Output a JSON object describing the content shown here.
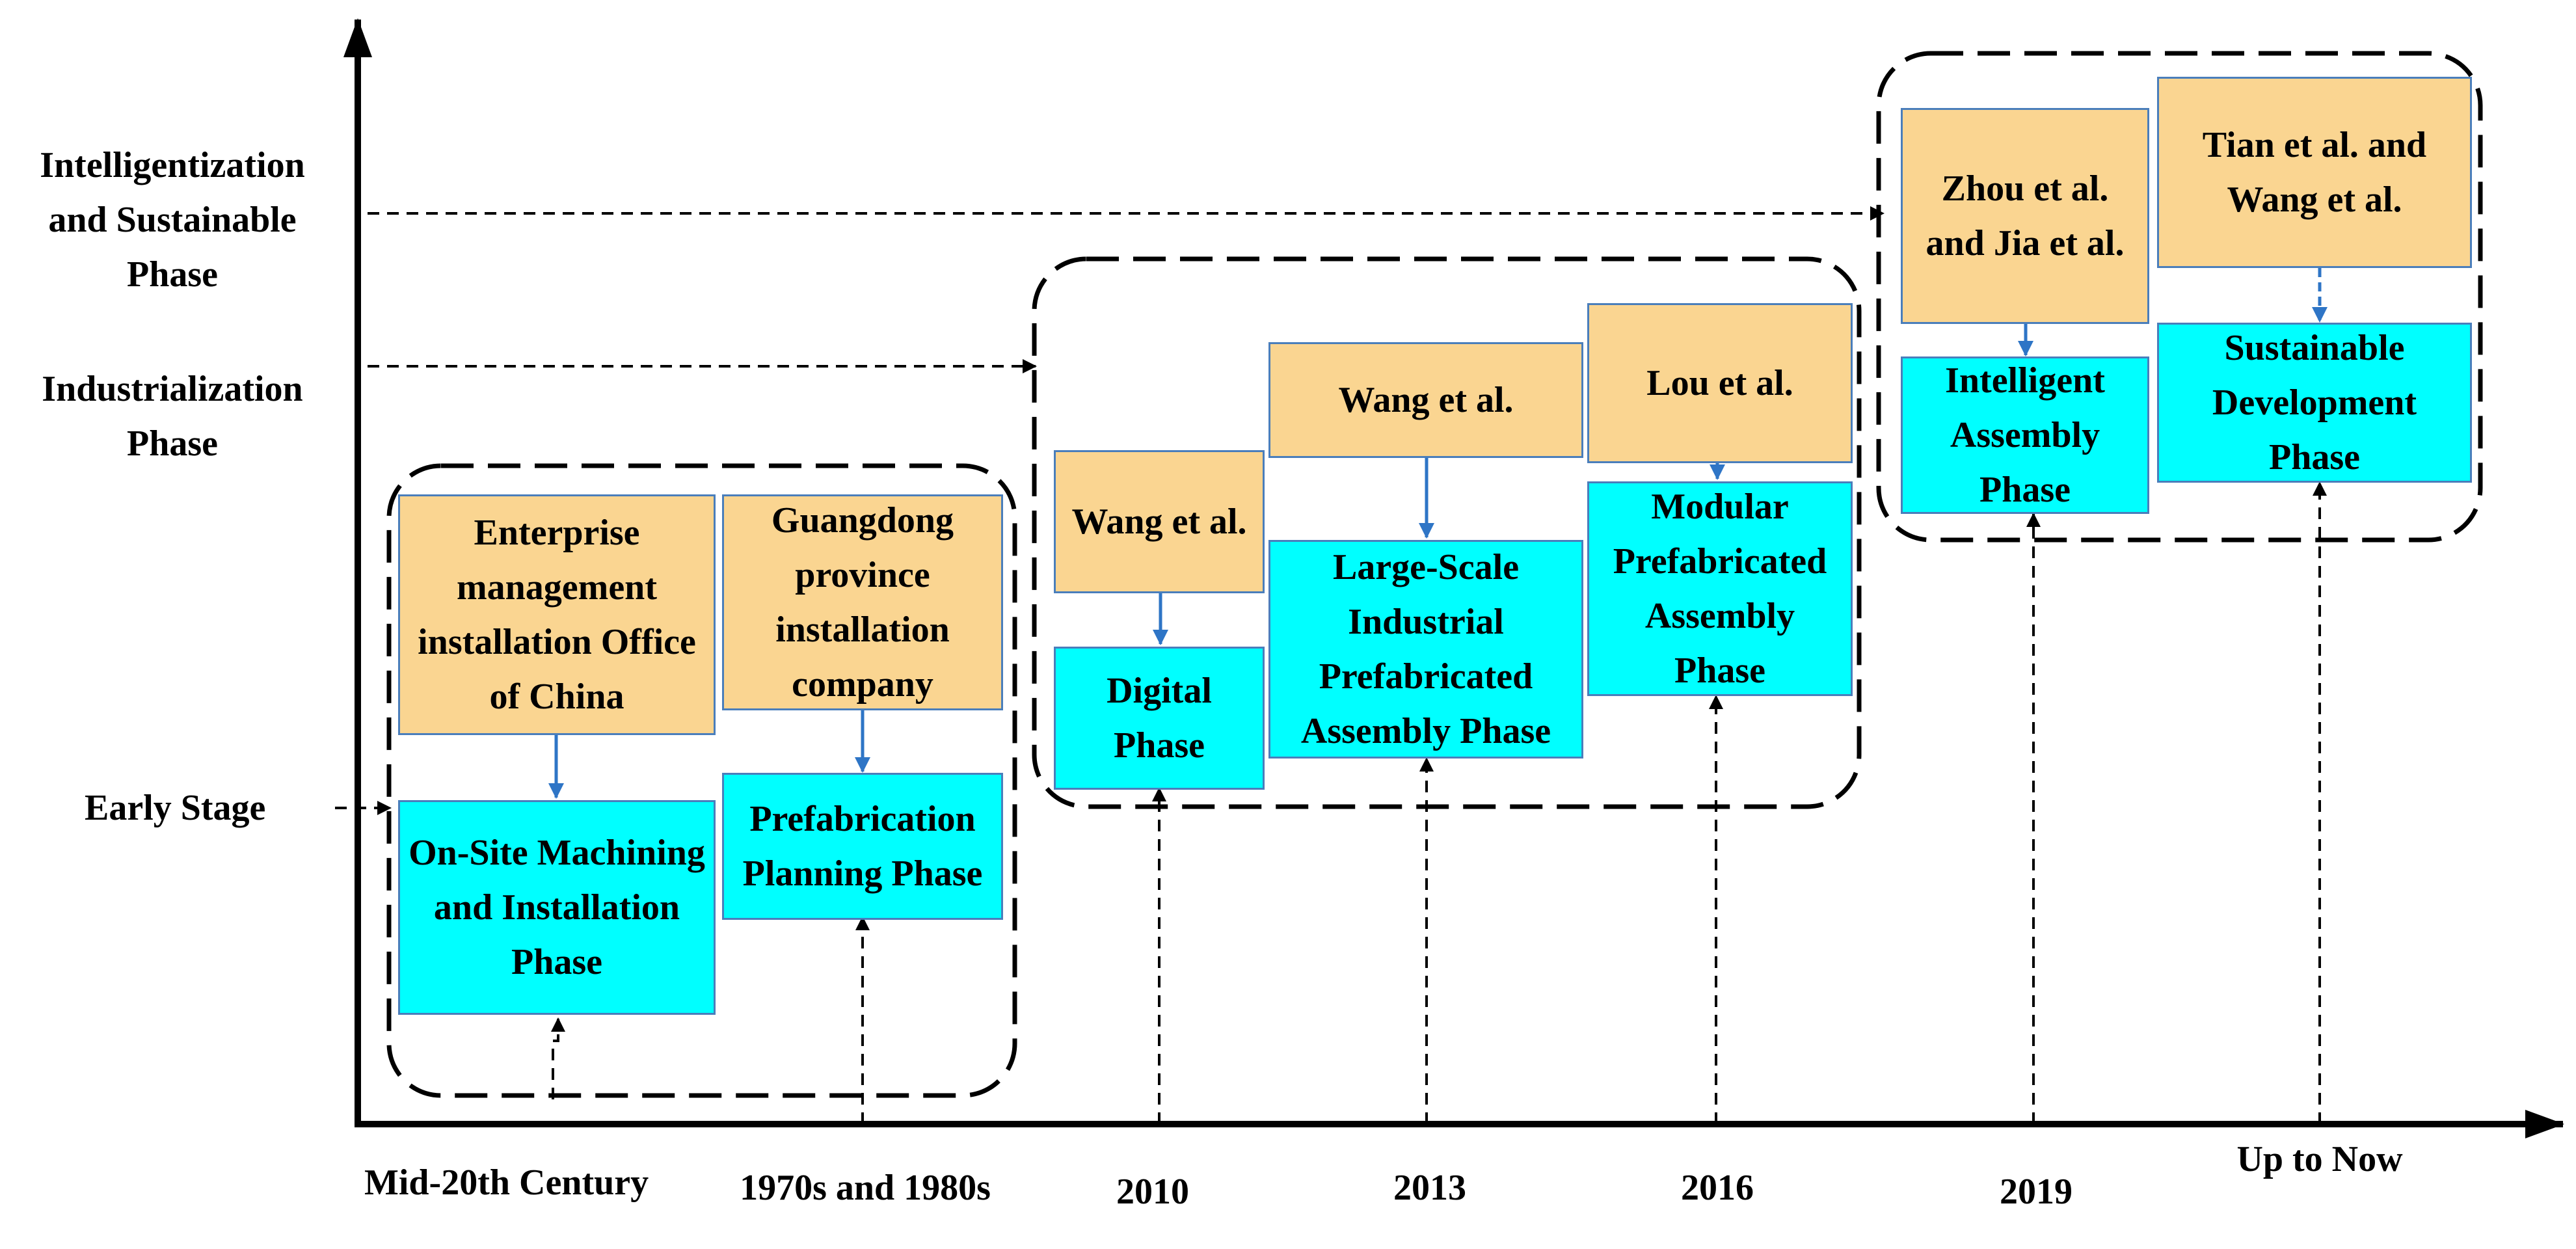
{
  "y_axis": {
    "labels": [
      "Intelligentization and Sustainable Phase",
      "Industrialization Phase",
      "Early Stage"
    ]
  },
  "x_axis": {
    "labels": [
      "Mid-20th Century",
      "1970s and 1980s",
      "2010",
      "2013",
      "2016",
      "2019",
      "Up to Now"
    ]
  },
  "groups": [
    {
      "stage": "Early Stage",
      "items": [
        {
          "author": "Enterprise management installation Office of China",
          "phase": "On-Site Machining and Installation Phase",
          "time": "Mid-20th Century"
        },
        {
          "author": "Guangdong province installation company",
          "phase": "Prefabrication Planning Phase",
          "time": "1970s and 1980s"
        }
      ]
    },
    {
      "stage": "Industrialization Phase",
      "items": [
        {
          "author": "Wang  et al.",
          "phase": "Digital Phase",
          "time": "2010"
        },
        {
          "author": "Wang  et al.",
          "phase": "Large-Scale Industrial Prefabricated Assembly Phase",
          "time": "2013"
        },
        {
          "author": "Lou  et al.",
          "phase": "Modular Prefabricated Assembly Phase",
          "time": "2016"
        }
      ]
    },
    {
      "stage": "Intelligentization and Sustainable Phase",
      "items": [
        {
          "author": "Zhou  et al. and Jia et al.",
          "phase": "Intelligent Assembly Phase",
          "time": "2019"
        },
        {
          "author": "Tian   et al. and Wang  et al.",
          "phase": "Sustainable Development Phase",
          "time": "Up to Now"
        }
      ]
    }
  ],
  "colors": {
    "author_fill": "#fad591",
    "phase_fill": "#00ffff",
    "box_border": "#4a7ebb",
    "arrow_blue": "#2e75c6",
    "line": "#000000"
  }
}
